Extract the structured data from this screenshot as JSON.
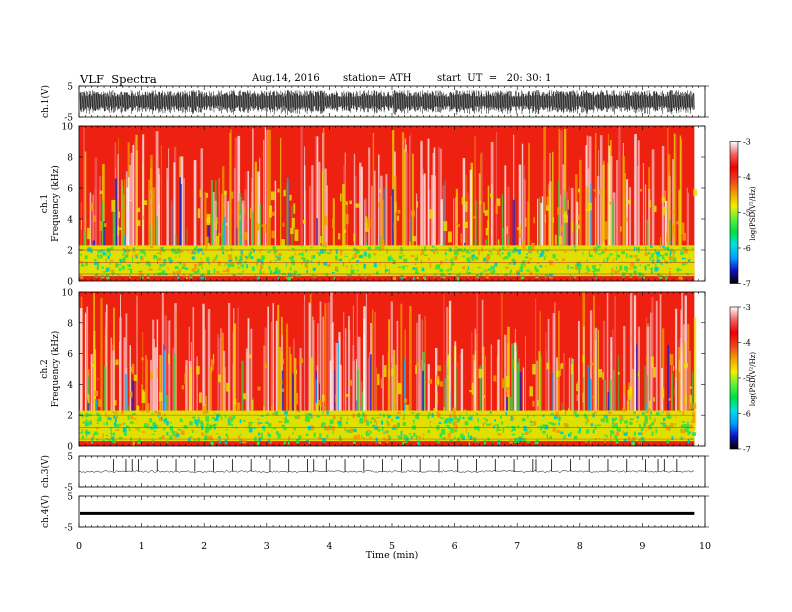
{
  "header": {
    "title": "VLF  Spectra",
    "date": "Aug.14, 2016",
    "station": "station= ATH",
    "start": "start  UT  =   20: 30: 1"
  },
  "chart_data": [
    {
      "type": "line",
      "panel": "ch1",
      "ylabel": "ch.1(V)",
      "ylim": [
        -5,
        5
      ],
      "yticks": [
        5,
        -5
      ],
      "description_values": {
        "amplitude_band": [
          -3.5,
          3.5
        ]
      }
    },
    {
      "type": "heatmap",
      "panel": "ch1-spectrogram",
      "ylabel": "ch.1\nFrequency  (kHz)",
      "ylabel_line1": "ch.1",
      "ylabel_line2": "Frequency  (kHz)",
      "ylim": [
        0,
        10
      ],
      "yticks": [
        0,
        2,
        4,
        6,
        8,
        10
      ],
      "colorbar": {
        "label": "log(PSD(V²/Hz)",
        "range": [
          -7,
          -3
        ],
        "ticks": [
          -3,
          -4,
          -5,
          -6,
          -7
        ]
      }
    },
    {
      "type": "heatmap",
      "panel": "ch2-spectrogram",
      "ylabel_line1": "ch.2",
      "ylabel_line2": "Frequency  (kHz)",
      "ylim": [
        0,
        10
      ],
      "yticks": [
        0,
        2,
        4,
        6,
        8,
        10
      ],
      "colorbar": {
        "label": "log(PSD(V²/Hz)",
        "range": [
          -7,
          -3
        ],
        "ticks": [
          -3,
          -4,
          -5,
          -6,
          -7
        ]
      }
    },
    {
      "type": "line",
      "panel": "ch3",
      "ylabel": "ch.3(V)",
      "ylim": [
        -5,
        5
      ],
      "yticks": [
        5,
        -5
      ],
      "spike_times_min": [
        0.55,
        0.75,
        0.85,
        0.95,
        1.25,
        1.55,
        1.85,
        2.15,
        2.45,
        2.75,
        3.05,
        3.35,
        3.65,
        3.75,
        3.95,
        4.25,
        4.55,
        4.85,
        5.15,
        5.45,
        5.75,
        6.05,
        6.35,
        6.65,
        6.95,
        7.25,
        7.3,
        7.55,
        7.85,
        8.15,
        8.45,
        8.75,
        9.05,
        9.25,
        9.35,
        9.55
      ]
    },
    {
      "type": "line",
      "panel": "ch4",
      "ylabel": "ch.4(V)",
      "ylim": [
        -5,
        5
      ],
      "yticks": [
        5,
        -5
      ],
      "level_V": -0.6
    }
  ],
  "xaxis": {
    "label": "Time  (min)",
    "xlim": [
      0,
      10
    ],
    "ticks": [
      "0",
      "1",
      "2",
      "3",
      "4",
      "5",
      "6",
      "7",
      "8",
      "9",
      "10"
    ],
    "data_end_min": 9.83
  },
  "colors": {
    "colormap": [
      "#000000",
      "#1010c0",
      "#00a0ff",
      "#00e0e0",
      "#00e040",
      "#60f040",
      "#f0f000",
      "#f0a000",
      "#f04020",
      "#f00000",
      "#f06060",
      "#ffffff"
    ]
  }
}
